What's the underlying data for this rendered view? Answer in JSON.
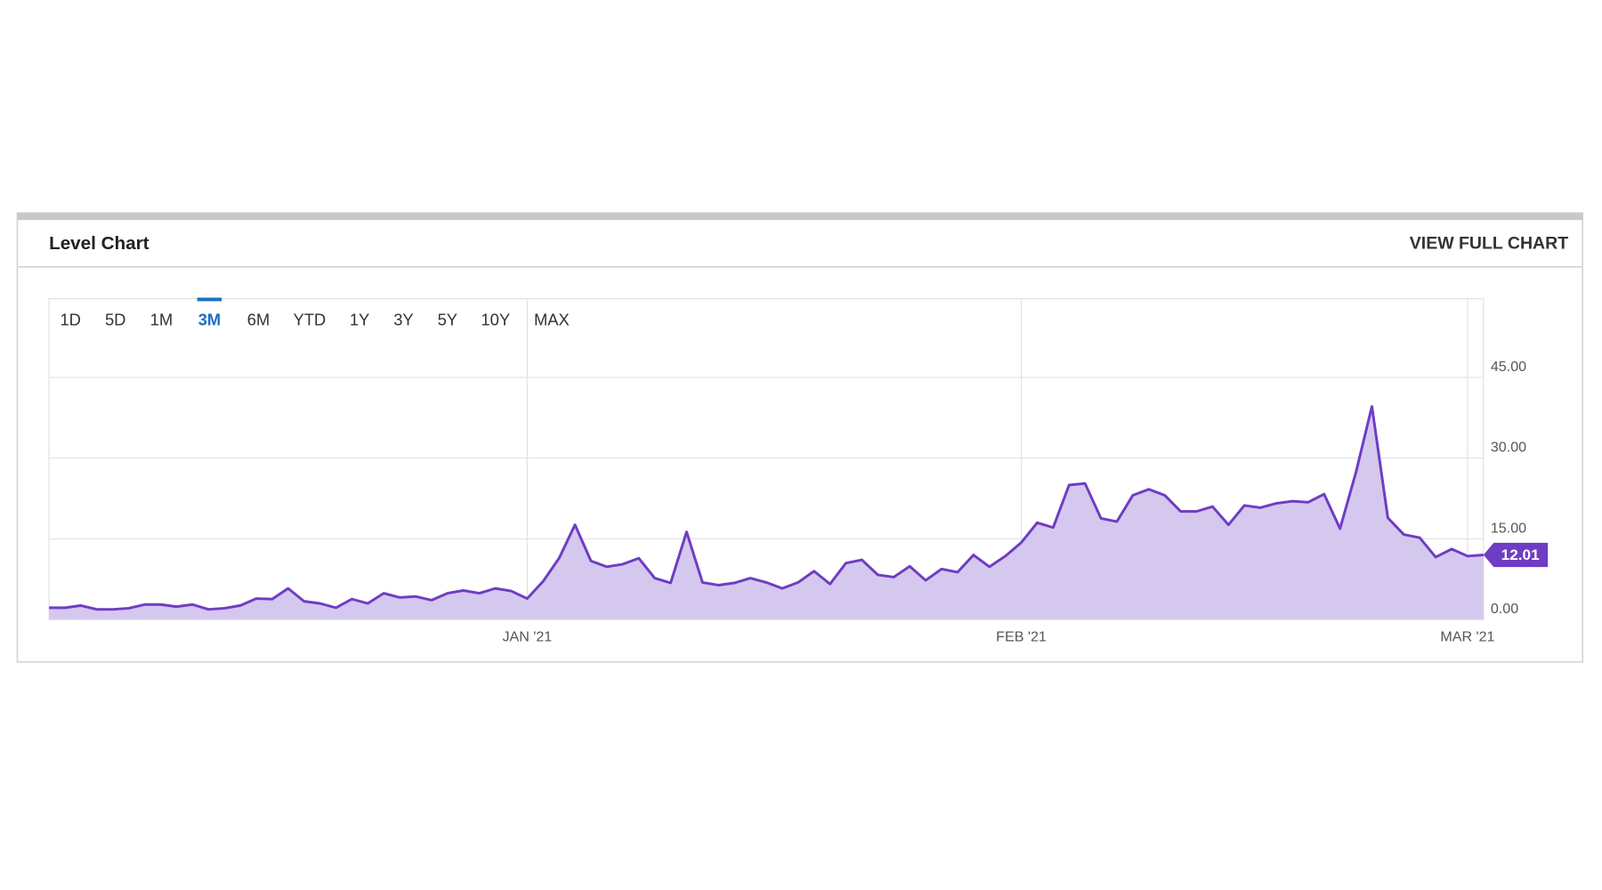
{
  "header": {
    "title": "Level Chart",
    "link": "VIEW FULL CHART"
  },
  "ranges": [
    "1D",
    "5D",
    "1M",
    "3M",
    "6M",
    "YTD",
    "1Y",
    "3Y",
    "5Y",
    "10Y",
    "MAX"
  ],
  "selected_range": 3,
  "chart_data": {
    "type": "area",
    "categories": [
      null,
      null,
      null,
      null,
      null,
      null,
      null,
      null,
      null,
      null,
      null,
      null,
      null,
      null,
      null,
      null,
      null,
      null,
      null,
      null,
      null,
      null,
      null,
      null,
      null,
      null,
      null,
      null,
      null,
      null,
      "JAN '21",
      null,
      null,
      null,
      null,
      null,
      null,
      null,
      null,
      null,
      null,
      null,
      null,
      null,
      null,
      null,
      null,
      null,
      null,
      null,
      null,
      null,
      null,
      null,
      null,
      null,
      null,
      null,
      null,
      null,
      null,
      "FEB '21",
      null,
      null,
      null,
      null,
      null,
      null,
      null,
      null,
      null,
      null,
      null,
      null,
      null,
      null,
      null,
      null,
      null,
      null,
      null,
      null,
      null,
      null,
      null,
      null,
      null,
      null,
      null,
      "MAR '21",
      null
    ],
    "series": [
      {
        "name": null,
        "color": "#6f3cc4",
        "fill": "#d5c8ee",
        "values": [
          2.2,
          2.2,
          2.6,
          1.9,
          1.9,
          2.1,
          2.8,
          2.8,
          2.4,
          2.8,
          1.9,
          2.1,
          2.6,
          3.9,
          3.8,
          5.8,
          3.4,
          3.0,
          2.2,
          3.8,
          3.0,
          4.9,
          4.1,
          4.3,
          3.6,
          4.9,
          5.4,
          4.9,
          5.8,
          5.3,
          3.9,
          7.1,
          11.4,
          17.6,
          10.9,
          9.8,
          10.3,
          11.4,
          7.7,
          6.8,
          16.3,
          6.9,
          6.4,
          6.8,
          7.7,
          6.9,
          5.8,
          6.9,
          9.0,
          6.6,
          10.5,
          11.1,
          8.3,
          7.9,
          9.9,
          7.3,
          9.4,
          8.8,
          12.0,
          9.8,
          11.8,
          14.3,
          18.0,
          17.1,
          25.0,
          25.3,
          18.8,
          18.2,
          23.1,
          24.2,
          23.1,
          20.1,
          20.1,
          21.0,
          17.6,
          21.2,
          20.8,
          21.6,
          22.0,
          21.8,
          23.3,
          16.9,
          27.4,
          39.6,
          18.9,
          15.8,
          15.2,
          11.6,
          13.1,
          11.8,
          12.01
        ]
      }
    ],
    "ylim": [
      0,
      60
    ],
    "yticks": [
      {
        "value": 0,
        "label": "0.00"
      },
      {
        "value": 15,
        "label": "15.00"
      },
      {
        "value": 30,
        "label": "30.00"
      },
      {
        "value": 45,
        "label": "45.00"
      }
    ],
    "grid": true
  }
}
